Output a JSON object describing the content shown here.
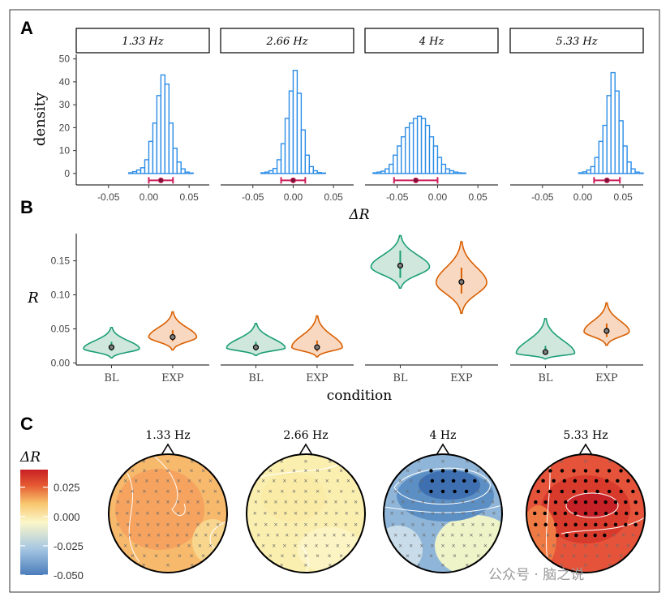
{
  "figure": {
    "panel_letters": [
      "A",
      "B",
      "C"
    ],
    "facets": [
      "1.33 Hz",
      "2.66 Hz",
      "4 Hz",
      "5.33 Hz"
    ],
    "watermark": "公众号 · 脑之说"
  },
  "chart_data": [
    {
      "panel": "A",
      "type": "histogram",
      "xlabel": "ΔR",
      "ylabel": "density",
      "xlim": [
        -0.09,
        0.075
      ],
      "ylim": [
        -5,
        52
      ],
      "x_ticks": [
        -0.05,
        0.0,
        0.05
      ],
      "x_tick_labels": [
        "-0.05",
        "0.00",
        "0.05"
      ],
      "y_ticks": [
        0,
        10,
        20,
        30,
        40,
        50
      ],
      "y_tick_labels": [
        "0",
        "10",
        "20",
        "30",
        "40",
        "50"
      ],
      "bin_width": 0.005,
      "series": [
        {
          "name": "1.33 Hz",
          "bin_starts": [
            -0.025,
            -0.02,
            -0.015,
            -0.01,
            -0.005,
            0.0,
            0.005,
            0.01,
            0.015,
            0.02,
            0.025,
            0.03,
            0.035,
            0.04,
            0.045,
            0.05
          ],
          "density": [
            0.3,
            0.8,
            1.5,
            2.5,
            6,
            14,
            22,
            34,
            43,
            39,
            22,
            11,
            5,
            2,
            0.6,
            0.2
          ],
          "point": 0.015,
          "ci": [
            0.0,
            0.03
          ]
        },
        {
          "name": "2.66 Hz",
          "bin_starts": [
            -0.04,
            -0.035,
            -0.03,
            -0.025,
            -0.02,
            -0.015,
            -0.01,
            -0.005,
            0.0,
            0.005,
            0.01,
            0.015,
            0.02,
            0.025,
            0.03,
            0.035
          ],
          "density": [
            0.3,
            0.6,
            1.2,
            2.2,
            6,
            13,
            24,
            36,
            45,
            35,
            19,
            8,
            3,
            1.2,
            0.4,
            0.2
          ],
          "point": 0.0,
          "ci": [
            -0.015,
            0.015
          ]
        },
        {
          "name": "4 Hz",
          "bin_starts": [
            -0.08,
            -0.075,
            -0.07,
            -0.065,
            -0.06,
            -0.055,
            -0.05,
            -0.045,
            -0.04,
            -0.035,
            -0.03,
            -0.025,
            -0.02,
            -0.015,
            -0.01,
            -0.005,
            0.0,
            0.005,
            0.01,
            0.015,
            0.02,
            0.025,
            0.03
          ],
          "density": [
            0.3,
            0.6,
            1,
            2,
            4,
            8,
            12,
            16,
            20,
            22,
            24,
            25,
            24,
            21,
            16,
            12,
            7,
            4,
            2,
            1.2,
            0.6,
            0.3,
            0.2
          ],
          "point": -0.027,
          "ci": [
            -0.054,
            0.0
          ]
        },
        {
          "name": "5.33 Hz",
          "bin_starts": [
            -0.005,
            0.0,
            0.005,
            0.01,
            0.015,
            0.02,
            0.025,
            0.03,
            0.035,
            0.04,
            0.045,
            0.05,
            0.055,
            0.06,
            0.065,
            0.07
          ],
          "density": [
            0.3,
            0.7,
            1.5,
            3,
            7,
            14,
            21,
            34,
            44,
            36,
            23,
            12,
            5,
            2,
            0.6,
            0.2
          ],
          "point": 0.03,
          "ci": [
            0.014,
            0.046
          ]
        }
      ]
    },
    {
      "panel": "B",
      "type": "violin",
      "xlabel": "condition",
      "ylabel": "R",
      "ylim": [
        -0.003,
        0.19
      ],
      "y_ticks": [
        0.0,
        0.05,
        0.1,
        0.15
      ],
      "y_tick_labels": [
        "0.00",
        "0.05",
        "0.10",
        "0.15"
      ],
      "categories": [
        "BL",
        "EXP"
      ],
      "colors": {
        "BL": "#1b9e77",
        "BL_fill": "#cfe7dc",
        "EXP": "#d95f02",
        "EXP_fill": "#f8d8c0"
      },
      "series": [
        {
          "name": "1.33 Hz",
          "BL": {
            "min": 0.0075,
            "max": 0.052,
            "mode": 0.021,
            "halfwidth": 0.42,
            "median": 0.023,
            "iqr": [
              0.018,
              0.031
            ]
          },
          "EXP": {
            "min": 0.019,
            "max": 0.075,
            "mode": 0.038,
            "halfwidth": 0.36,
            "median": 0.038,
            "iqr": [
              0.032,
              0.048
            ]
          }
        },
        {
          "name": "2.66 Hz",
          "BL": {
            "min": 0.011,
            "max": 0.058,
            "mode": 0.022,
            "halfwidth": 0.44,
            "median": 0.023,
            "iqr": [
              0.018,
              0.031
            ]
          },
          "EXP": {
            "min": 0.009,
            "max": 0.069,
            "mode": 0.023,
            "halfwidth": 0.38,
            "median": 0.023,
            "iqr": [
              0.017,
              0.033
            ]
          }
        },
        {
          "name": "4 Hz",
          "BL": {
            "min": 0.11,
            "max": 0.187,
            "mode": 0.141,
            "halfwidth": 0.44,
            "median": 0.143,
            "iqr": [
              0.125,
              0.165
            ]
          },
          "EXP": {
            "min": 0.073,
            "max": 0.178,
            "mode": 0.118,
            "halfwidth": 0.38,
            "median": 0.119,
            "iqr": [
              0.102,
              0.14
            ]
          }
        },
        {
          "name": "5.33 Hz",
          "BL": {
            "min": 0.006,
            "max": 0.065,
            "mode": 0.014,
            "halfwidth": 0.44,
            "median": 0.016,
            "iqr": [
              0.012,
              0.025
            ]
          },
          "EXP": {
            "min": 0.026,
            "max": 0.088,
            "mode": 0.046,
            "halfwidth": 0.34,
            "median": 0.047,
            "iqr": [
              0.038,
              0.058
            ]
          }
        }
      ]
    },
    {
      "panel": "C",
      "type": "heatmap",
      "subtype": "scalp topography",
      "colorbar_label": "ΔR",
      "colorbar_range": [
        -0.05,
        0.04
      ],
      "colorbar_ticks": [
        0.025,
        0.0,
        -0.025,
        -0.05
      ],
      "colorbar_tick_labels": [
        "0.025",
        "0.000",
        "-0.025",
        "-0.050"
      ],
      "colorscale": [
        "#4b7dbb",
        "#a6c7e2",
        "#fbf7c9",
        "#f8c56d",
        "#e55a32",
        "#c82024"
      ],
      "maps": [
        {
          "name": "1.33 Hz",
          "mean": 0.015,
          "significant_sites": 0
        },
        {
          "name": "2.66 Hz",
          "mean": 0.001,
          "significant_sites": 0
        },
        {
          "name": "4 Hz",
          "mean": -0.027,
          "significant_sites": 16
        },
        {
          "name": "5.33 Hz",
          "mean": 0.03,
          "significant_sites": 64
        }
      ]
    }
  ]
}
